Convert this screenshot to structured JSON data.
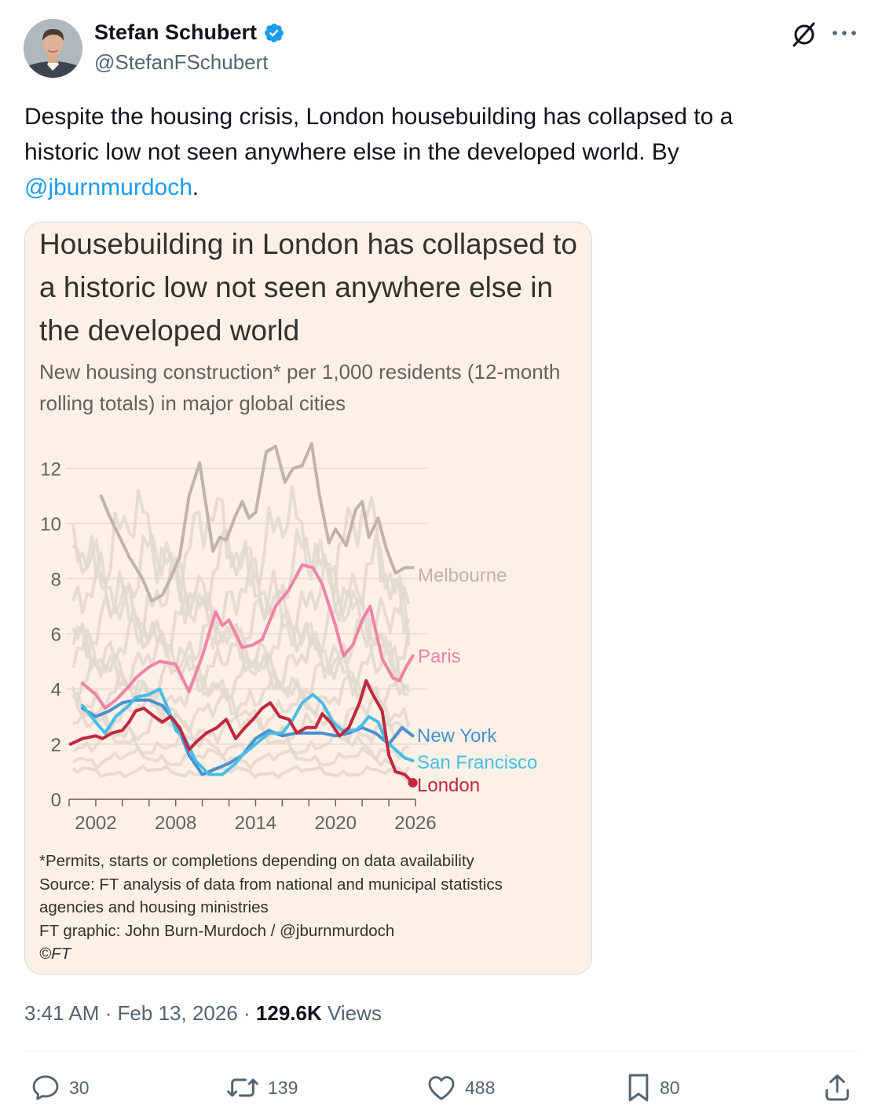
{
  "author": {
    "name": "Stefan Schubert",
    "handle": "@StefanFSchubert",
    "verified": true,
    "avatar_icon": "avatar-photo"
  },
  "header_icons": [
    "grok-icon",
    "more-options-icon"
  ],
  "tweet": {
    "text_main": "Despite the housing crisis, London housebuilding has collapsed to a historic low not seen anywhere else in the developed world. By ",
    "mention": "@jburnmurdoch",
    "text_end": "."
  },
  "chart": {
    "title": "Housebuilding in London has collapsed to a historic low not seen anywhere else in the developed world",
    "subtitle": "New housing construction* per 1,000 residents (12-month rolling totals) in major global cities",
    "footnotes": [
      "*Permits, starts or completions depending on data availability",
      "Source: FT analysis of data from national and municipal statistics",
      "agencies and housing ministries",
      "FT graphic: John Burn-Murdoch / @jburnmurdoch",
      "©FT"
    ]
  },
  "chart_data": {
    "type": "line",
    "title": "Housebuilding in London has collapsed to a historic low not seen anywhere else in the developed world",
    "subtitle": "New housing construction* per 1,000 residents (12-month rolling totals) in major global cities",
    "xlabel": "",
    "ylabel": "",
    "xlim": [
      2000,
      2026.5
    ],
    "ylim": [
      0,
      13
    ],
    "x_ticks": [
      2002,
      2008,
      2014,
      2020,
      2026
    ],
    "y_ticks": [
      0,
      2,
      4,
      6,
      8,
      10,
      12
    ],
    "grid": true,
    "legend": "direct labels at right end of lines",
    "colors": {
      "Melbourne": "#bfb3ab",
      "Paris": "#f083a8",
      "New York": "#4a90d0",
      "San Francisco": "#48bde6",
      "London": "#c0283f",
      "other_cities": "#e3d8ce"
    },
    "series": [
      {
        "name": "Melbourne",
        "x": [
          2002.4,
          2003,
          2003.5,
          2004.5,
          2005.5,
          2006.2,
          2007,
          2007.6,
          2008.3,
          2009,
          2009.8,
          2010.8,
          2011.3,
          2011.8,
          2012.5,
          2013,
          2013.5,
          2014,
          2014.8,
          2015.5,
          2016.2,
          2016.8,
          2017.5,
          2018.2,
          2018.8,
          2019.5,
          2020,
          2020.8,
          2021.5,
          2022,
          2022.5,
          2023.2,
          2023.8,
          2024.5,
          2025.2,
          2025.8
        ],
        "y": [
          11,
          10.3,
          9.8,
          8.8,
          8.0,
          7.2,
          7.4,
          8.0,
          8.8,
          11.0,
          12.2,
          9.0,
          9.5,
          9.4,
          10.3,
          10.8,
          10.2,
          10.4,
          12.6,
          12.8,
          11.5,
          12.0,
          12.1,
          12.9,
          11.0,
          9.3,
          9.8,
          9.2,
          10.5,
          10.8,
          9.5,
          10.2,
          9.1,
          8.2,
          8.4,
          8.4
        ]
      },
      {
        "name": "Paris",
        "x": [
          2001,
          2002,
          2002.7,
          2003.5,
          2004.5,
          2005,
          2006,
          2006.8,
          2008,
          2009,
          2010,
          2011,
          2011.5,
          2012,
          2013,
          2013.8,
          2014.5,
          2015.5,
          2016.5,
          2017.5,
          2018.3,
          2019,
          2020,
          2020.6,
          2021.3,
          2022,
          2022.6,
          2023.5,
          2024.3,
          2024.8,
          2025.3,
          2025.8
        ],
        "y": [
          4.2,
          3.8,
          3.3,
          3.6,
          4.1,
          4.4,
          4.8,
          5.0,
          4.9,
          3.9,
          5.2,
          6.8,
          6.3,
          6.5,
          5.5,
          5.6,
          5.8,
          7.0,
          7.6,
          8.5,
          8.4,
          7.8,
          6.3,
          5.2,
          5.6,
          6.5,
          7.0,
          5.1,
          4.4,
          4.3,
          4.8,
          5.2
        ]
      },
      {
        "name": "New York",
        "x": [
          2001,
          2002,
          2003,
          2004,
          2005,
          2006,
          2007,
          2008,
          2009,
          2010,
          2011,
          2012,
          2013,
          2014,
          2015,
          2016,
          2017,
          2018,
          2019,
          2020,
          2021,
          2022,
          2023,
          2024,
          2025,
          2025.8
        ],
        "y": [
          3.3,
          3.0,
          3.2,
          3.5,
          3.6,
          3.6,
          3.4,
          2.8,
          1.6,
          0.9,
          1.1,
          1.3,
          1.6,
          2.2,
          2.5,
          2.3,
          2.4,
          2.4,
          2.4,
          2.3,
          2.4,
          2.6,
          2.4,
          2.0,
          2.6,
          2.3
        ]
      },
      {
        "name": "San Francisco",
        "x": [
          2001,
          2002,
          2002.7,
          2003.5,
          2004.5,
          2005,
          2006,
          2006.8,
          2007.5,
          2008,
          2008.7,
          2009.5,
          2010.5,
          2011.5,
          2012.5,
          2013,
          2014,
          2015,
          2016,
          2016.8,
          2017.5,
          2018.3,
          2019,
          2019.8,
          2020.5,
          2021.5,
          2022,
          2022.5,
          2023.2,
          2023.8,
          2024.5,
          2025.2,
          2025.8
        ],
        "y": [
          3.4,
          2.8,
          2.4,
          3.0,
          3.4,
          3.7,
          3.8,
          4.0,
          3.2,
          2.5,
          2.2,
          1.4,
          0.9,
          0.9,
          1.3,
          1.6,
          2.0,
          2.4,
          2.4,
          2.9,
          3.5,
          3.8,
          3.5,
          2.8,
          2.5,
          2.5,
          2.7,
          3.0,
          2.8,
          2.1,
          1.8,
          1.5,
          1.4
        ]
      },
      {
        "name": "London",
        "x": [
          2000.1,
          2001,
          2002,
          2002.5,
          2003.2,
          2004,
          2004.5,
          2005,
          2005.6,
          2006.4,
          2007,
          2007.6,
          2008.3,
          2009,
          2009.6,
          2010.3,
          2011.1,
          2011.8,
          2012.5,
          2013.2,
          2013.8,
          2014.5,
          2015.1,
          2015.8,
          2016.5,
          2017.1,
          2017.8,
          2018.5,
          2019,
          2019.6,
          2020.3,
          2021,
          2021.8,
          2022.3,
          2022.8,
          2023.5,
          2024,
          2024.5,
          2025.2,
          2025.8
        ],
        "y": [
          2.0,
          2.2,
          2.3,
          2.2,
          2.4,
          2.5,
          2.8,
          3.2,
          3.3,
          3.0,
          2.8,
          3.0,
          2.6,
          1.8,
          2.1,
          2.4,
          2.6,
          2.9,
          2.2,
          2.6,
          2.9,
          3.3,
          3.5,
          3.0,
          2.9,
          2.4,
          2.6,
          2.6,
          3.1,
          2.8,
          2.3,
          2.6,
          3.5,
          4.3,
          3.8,
          3.2,
          1.6,
          1.0,
          0.9,
          0.6
        ]
      }
    ]
  },
  "meta": {
    "time": "3:41 AM",
    "date": "Feb 13, 2026",
    "separator": "·",
    "views_count": "129.6K",
    "views_label": "Views"
  },
  "actions": {
    "replies": "30",
    "reposts": "139",
    "likes": "488",
    "bookmarks": "80"
  }
}
